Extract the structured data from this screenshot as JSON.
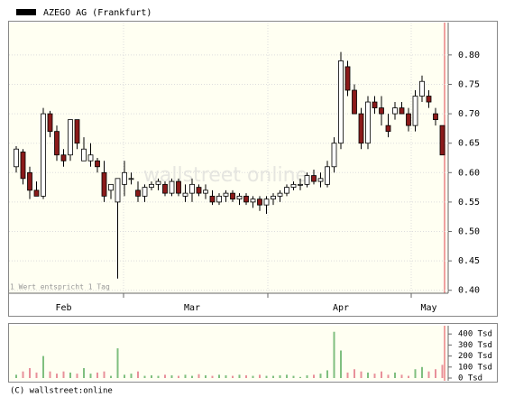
{
  "chart_data": [
    {
      "type": "candlestick",
      "title": "AZEGO AG (Frankfurt)",
      "note": "1 Wert entspricht 1 Tag",
      "watermark": "wallstreet online",
      "copyright": "(C) wallstreet:online",
      "up_color": "#ffffff",
      "down_color": "#8b1a1a",
      "grid": true,
      "categories": [
        null,
        null,
        null,
        null,
        null,
        null,
        null,
        "Feb",
        null,
        null,
        null,
        null,
        null,
        null,
        null,
        null,
        null,
        null,
        null,
        null,
        null,
        null,
        null,
        null,
        null,
        null,
        "Mar",
        null,
        null,
        null,
        null,
        null,
        null,
        null,
        null,
        null,
        null,
        null,
        null,
        null,
        null,
        null,
        null,
        null,
        null,
        null,
        null,
        null,
        "Apr",
        null,
        null,
        null,
        null,
        null,
        null,
        null,
        null,
        null,
        null,
        null,
        null,
        "May",
        null,
        null
      ],
      "open": [
        0.61,
        0.635,
        0.6,
        0.57,
        0.56,
        0.7,
        0.67,
        0.63,
        0.63,
        0.69,
        0.62,
        0.62,
        0.62,
        0.6,
        0.57,
        0.55,
        0.58,
        0.59,
        0.57,
        0.56,
        0.575,
        0.58,
        0.58,
        0.565,
        0.585,
        0.56,
        0.565,
        0.575,
        0.565,
        0.56,
        0.55,
        0.56,
        0.565,
        0.555,
        0.56,
        0.55,
        0.555,
        0.545,
        0.555,
        0.56,
        0.565,
        0.575,
        0.58,
        0.58,
        0.595,
        0.585,
        0.58,
        0.61,
        0.65,
        0.78,
        0.74,
        0.7,
        0.65,
        0.72,
        0.71,
        0.68,
        0.7,
        0.71,
        0.7,
        0.68,
        0.73,
        0.73,
        0.7,
        0.68
      ],
      "high": [
        0.645,
        0.64,
        0.61,
        0.585,
        0.71,
        0.705,
        0.68,
        0.64,
        0.69,
        0.69,
        0.66,
        0.65,
        0.625,
        0.62,
        0.58,
        0.59,
        0.62,
        0.6,
        0.585,
        0.58,
        0.585,
        0.59,
        0.585,
        0.59,
        0.59,
        0.58,
        0.59,
        0.58,
        0.58,
        0.57,
        0.565,
        0.57,
        0.57,
        0.565,
        0.565,
        0.56,
        0.56,
        0.56,
        0.565,
        0.57,
        0.58,
        0.585,
        0.59,
        0.6,
        0.605,
        0.6,
        0.62,
        0.66,
        0.805,
        0.79,
        0.75,
        0.71,
        0.73,
        0.73,
        0.73,
        0.7,
        0.72,
        0.72,
        0.71,
        0.74,
        0.765,
        0.74,
        0.71,
        0.68
      ],
      "low": [
        0.6,
        0.58,
        0.555,
        0.56,
        0.555,
        0.66,
        0.62,
        0.61,
        0.62,
        0.64,
        0.62,
        0.61,
        0.6,
        0.55,
        0.555,
        0.42,
        0.56,
        0.58,
        0.55,
        0.55,
        0.57,
        0.57,
        0.56,
        0.56,
        0.56,
        0.55,
        0.55,
        0.56,
        0.555,
        0.545,
        0.545,
        0.55,
        0.55,
        0.545,
        0.545,
        0.54,
        0.535,
        0.53,
        0.545,
        0.55,
        0.56,
        0.57,
        0.57,
        0.575,
        0.58,
        0.575,
        0.575,
        0.6,
        0.64,
        0.73,
        0.7,
        0.64,
        0.64,
        0.7,
        0.68,
        0.66,
        0.69,
        0.7,
        0.67,
        0.67,
        0.72,
        0.71,
        0.68,
        0.63
      ],
      "close": [
        0.64,
        0.59,
        0.57,
        0.56,
        0.7,
        0.67,
        0.63,
        0.62,
        0.69,
        0.65,
        0.64,
        0.63,
        0.61,
        0.56,
        0.58,
        0.59,
        0.6,
        0.59,
        0.56,
        0.575,
        0.58,
        0.585,
        0.565,
        0.585,
        0.565,
        0.565,
        0.58,
        0.565,
        0.57,
        0.55,
        0.56,
        0.565,
        0.555,
        0.56,
        0.55,
        0.555,
        0.545,
        0.555,
        0.56,
        0.565,
        0.575,
        0.58,
        0.58,
        0.595,
        0.585,
        0.59,
        0.61,
        0.65,
        0.79,
        0.74,
        0.7,
        0.65,
        0.72,
        0.71,
        0.7,
        0.67,
        0.71,
        0.7,
        0.68,
        0.73,
        0.755,
        0.72,
        0.69,
        0.63
      ],
      "ylim": [
        0.395,
        0.855
      ],
      "yticks": [
        {
          "value": 0.4,
          "label": "0.40"
        },
        {
          "value": 0.45,
          "label": "0.45"
        },
        {
          "value": 0.5,
          "label": "0.50"
        },
        {
          "value": 0.55,
          "label": "0.55"
        },
        {
          "value": 0.6,
          "label": "0.60"
        },
        {
          "value": 0.65,
          "label": "0.65"
        },
        {
          "value": 0.7,
          "label": "0.70"
        },
        {
          "value": 0.75,
          "label": "0.75"
        },
        {
          "value": 0.8,
          "label": "0.80"
        }
      ]
    },
    {
      "type": "bar",
      "up_color": "#7fbf7f",
      "down_color": "#e8909a",
      "values": [
        30,
        60,
        90,
        50,
        200,
        60,
        40,
        60,
        50,
        40,
        90,
        40,
        50,
        60,
        20,
        270,
        30,
        40,
        60,
        20,
        25,
        20,
        30,
        25,
        20,
        30,
        20,
        35,
        25,
        20,
        30,
        25,
        20,
        30,
        25,
        20,
        30,
        20,
        20,
        25,
        30,
        20,
        10,
        25,
        30,
        40,
        70,
        420,
        250,
        50,
        80,
        60,
        50,
        40,
        60,
        30,
        50,
        30,
        20,
        80,
        100,
        60,
        80,
        120
      ],
      "ylim": [
        0,
        475
      ],
      "yticks": [
        {
          "value": 0,
          "label": "0 Tsd"
        },
        {
          "value": 100,
          "label": "100 Tsd"
        },
        {
          "value": 200,
          "label": "200 Tsd"
        },
        {
          "value": 300,
          "label": "300 Tsd"
        },
        {
          "value": 400,
          "label": "400 Tsd"
        }
      ]
    }
  ]
}
